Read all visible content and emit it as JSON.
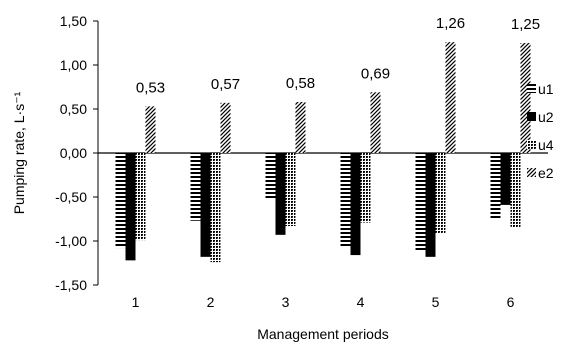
{
  "chart_data": {
    "type": "bar",
    "title": "",
    "xlabel": "Management periods",
    "ylabel": "Pumping rate, L·s⁻¹",
    "categories": [
      "1",
      "2",
      "3",
      "4",
      "5",
      "6"
    ],
    "ylim": [
      -1.5,
      1.5
    ],
    "yticks": [
      -1.5,
      -1.0,
      -0.5,
      0.0,
      0.5,
      1.0,
      1.5
    ],
    "ytick_labels": [
      "-1,50",
      "-1,00",
      "-0,50",
      "0,00",
      "0,50",
      "1,00",
      "1,50"
    ],
    "grid": false,
    "legend_position": "right",
    "series": [
      {
        "name": "u1",
        "pattern": "horizontal-lines",
        "values": [
          -1.08,
          -0.77,
          -0.53,
          -1.07,
          -1.12,
          -0.76
        ]
      },
      {
        "name": "u2",
        "pattern": "solid",
        "values": [
          -1.22,
          -1.18,
          -0.93,
          -1.16,
          -1.18,
          -0.59
        ]
      },
      {
        "name": "u4",
        "pattern": "dots",
        "values": [
          -0.99,
          -1.24,
          -0.83,
          -0.79,
          -0.91,
          -0.85
        ]
      },
      {
        "name": "e2",
        "pattern": "diagonal-lines",
        "values": [
          0.53,
          0.57,
          0.58,
          0.69,
          1.26,
          1.25
        ],
        "data_labels": [
          "0,53",
          "0,57",
          "0,58",
          "0,69",
          "1,26",
          "1,25"
        ]
      }
    ]
  }
}
